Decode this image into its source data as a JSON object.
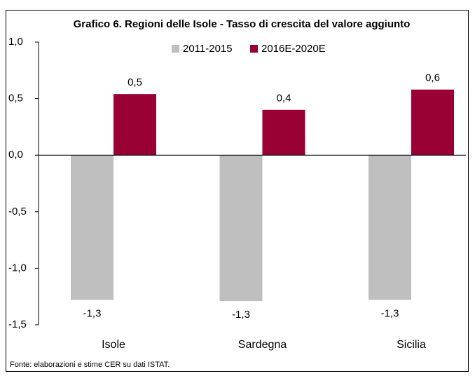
{
  "chart_data": {
    "type": "bar",
    "title": "Grafico 6. Regioni delle Isole - Tasso di crescita del valore aggiunto",
    "categories": [
      "Isole",
      "Sardegna",
      "Sicilia"
    ],
    "series": [
      {
        "name": "2011-2015",
        "color": "#bfbfbf",
        "values": [
          -1.28,
          -1.29,
          -1.28
        ],
        "value_labels": [
          "-1,3",
          "-1,3",
          "-1,3"
        ]
      },
      {
        "name": "2016E-2020E",
        "color": "#990033",
        "values": [
          0.54,
          0.4,
          0.58
        ],
        "value_labels": [
          "0,5",
          "0,4",
          "0,6"
        ]
      }
    ],
    "ylim": [
      -1.5,
      1.0
    ],
    "yticks": [
      {
        "value": -1.5,
        "label": "-1,5"
      },
      {
        "value": -1.0,
        "label": "-1,0"
      },
      {
        "value": -0.5,
        "label": "-0,5"
      },
      {
        "value": 0,
        "label": "0,0"
      },
      {
        "value": 0.5,
        "label": "0,5"
      },
      {
        "value": 1.0,
        "label": "1,0"
      }
    ],
    "legend": "top",
    "source": "Fonte: elaborazioni e stime CER su dati ISTAT."
  }
}
